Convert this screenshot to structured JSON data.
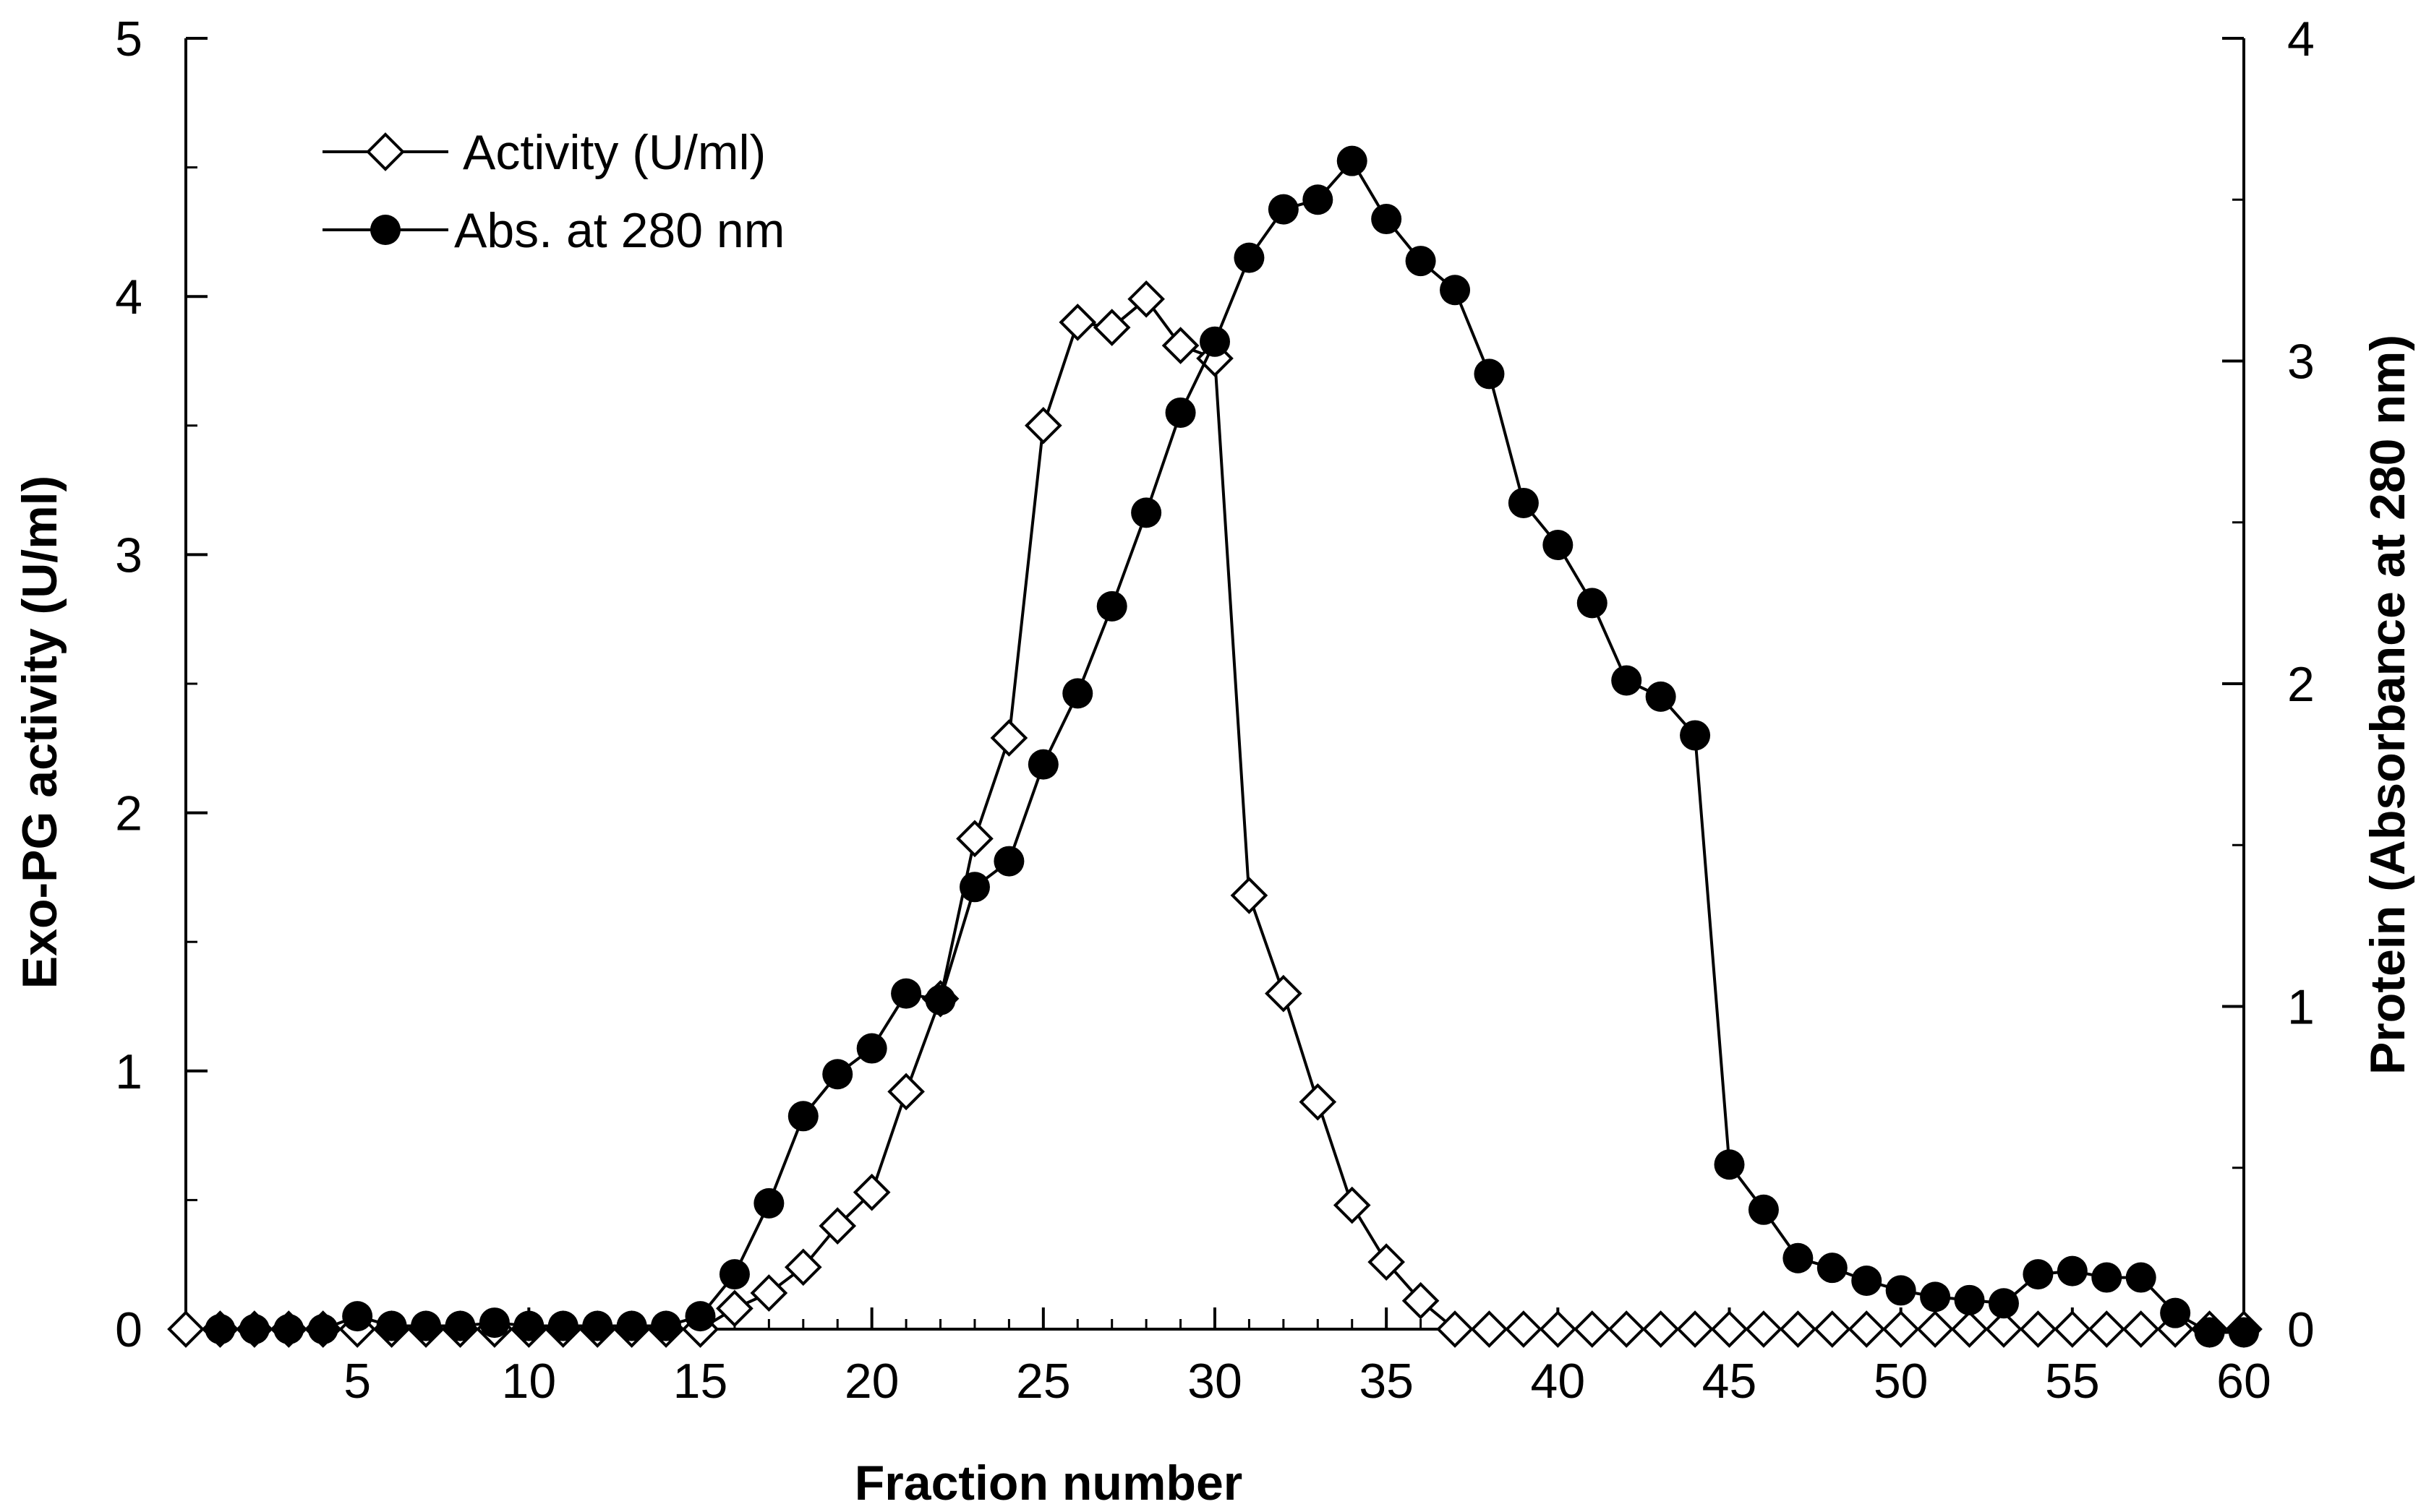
{
  "chart_data": {
    "type": "line",
    "title": "",
    "xlabel": "Fraction number",
    "ylabel_left": "Exo-PG activity (U/ml)",
    "ylabel_right": "Protein (Absorbance at 280 nm)",
    "xlim": [
      0,
      60
    ],
    "ylim_left": [
      0,
      5
    ],
    "ylim_right": [
      0,
      4
    ],
    "x_ticks": [
      5,
      10,
      15,
      20,
      25,
      30,
      35,
      40,
      45,
      50,
      55,
      60
    ],
    "y_left_ticks": [
      0,
      1,
      2,
      3,
      4,
      5
    ],
    "y_right_ticks": [
      0,
      1,
      2,
      3,
      4
    ],
    "grid": false,
    "legend_position": "top-left",
    "series": [
      {
        "name": "Activity (U/ml)",
        "axis": "left",
        "marker": "open-diamond",
        "x": [
          0,
          1,
          2,
          3,
          4,
          5,
          6,
          7,
          8,
          9,
          10,
          11,
          12,
          13,
          14,
          15,
          16,
          17,
          18,
          19,
          20,
          21,
          22,
          23,
          24,
          25,
          26,
          27,
          28,
          29,
          30,
          31,
          32,
          33,
          34,
          35,
          36,
          37,
          38,
          39,
          40,
          41,
          42,
          43,
          44,
          45,
          46,
          47,
          48,
          49,
          50,
          51,
          52,
          53,
          54,
          55,
          56,
          57,
          58,
          59,
          60
        ],
        "values": [
          0,
          0,
          0,
          0,
          0,
          0,
          0,
          0,
          0,
          0,
          0,
          0,
          0,
          0,
          0,
          0,
          0.08,
          0.14,
          0.24,
          0.4,
          0.53,
          0.92,
          1.28,
          1.9,
          2.29,
          3.5,
          3.9,
          3.88,
          3.99,
          3.81,
          3.76,
          1.68,
          1.3,
          0.88,
          0.48,
          0.26,
          0.11,
          0,
          0,
          0,
          0,
          0,
          0,
          0,
          0,
          0,
          0,
          0,
          0,
          0,
          0,
          0,
          0,
          0,
          0,
          0,
          0,
          0,
          0,
          0,
          0
        ]
      },
      {
        "name": "Abs. at 280 nm",
        "axis": "right",
        "marker": "filled-circle",
        "x": [
          1,
          2,
          3,
          4,
          5,
          6,
          7,
          8,
          9,
          10,
          11,
          12,
          13,
          14,
          15,
          16,
          17,
          18,
          19,
          20,
          21,
          22,
          23,
          24,
          25,
          26,
          27,
          28,
          29,
          30,
          31,
          32,
          33,
          34,
          35,
          36,
          37,
          38,
          39,
          40,
          41,
          42,
          43,
          44,
          45,
          46,
          47,
          48,
          49,
          50,
          51,
          52,
          53,
          54,
          55,
          56,
          57,
          58,
          59,
          60
        ],
        "values": [
          0,
          0,
          0,
          0,
          0.04,
          0.01,
          0.01,
          0.01,
          0.02,
          0.01,
          0.01,
          0.01,
          0.01,
          0.01,
          0.04,
          0.17,
          0.39,
          0.66,
          0.79,
          0.87,
          1.04,
          1.02,
          1.37,
          1.45,
          1.75,
          1.97,
          2.24,
          2.53,
          2.84,
          3.06,
          3.32,
          3.47,
          3.5,
          3.62,
          3.44,
          3.31,
          3.22,
          2.96,
          2.56,
          2.43,
          2.25,
          2.01,
          1.96,
          1.84,
          0.51,
          0.37,
          0.22,
          0.19,
          0.15,
          0.12,
          0.1,
          0.09,
          0.08,
          0.17,
          0.18,
          0.16,
          0.16,
          0.05,
          -0.01,
          -0.01
        ]
      }
    ]
  }
}
